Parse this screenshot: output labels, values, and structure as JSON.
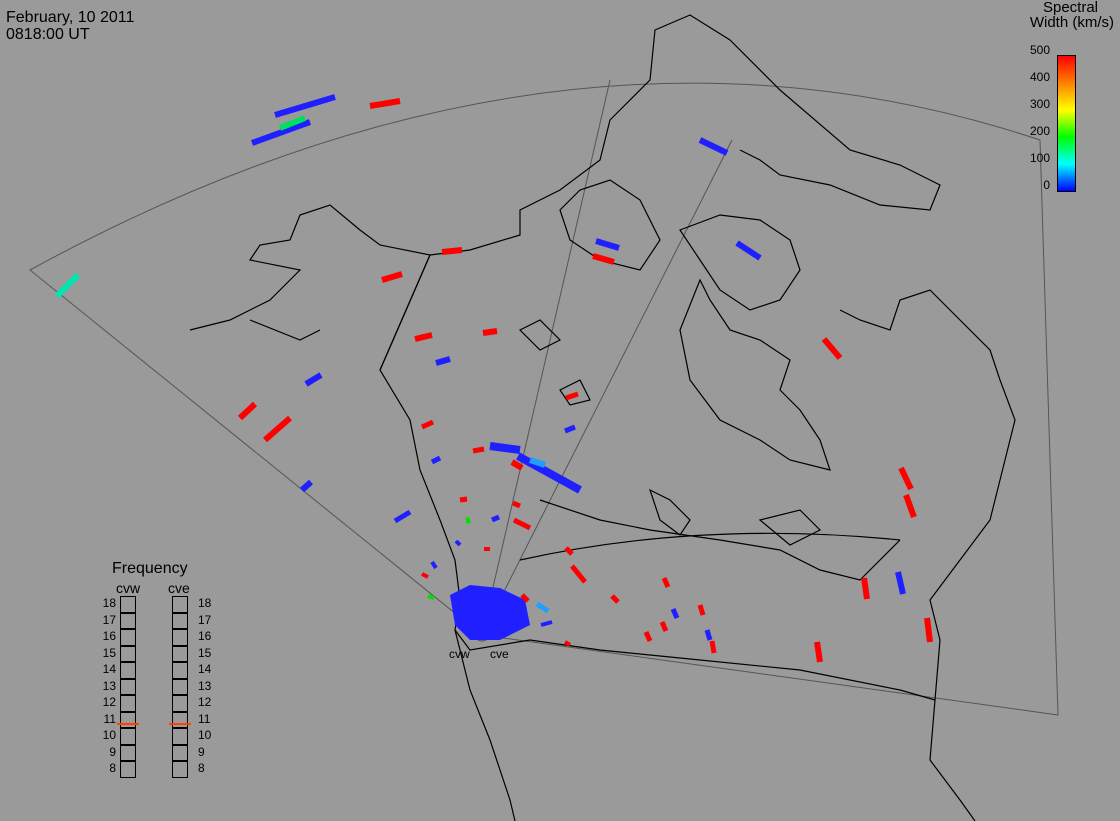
{
  "header": {
    "date": "February, 10 2011",
    "time": "0818:00 UT"
  },
  "colorbar": {
    "title_line1": "Spectral",
    "title_line2": "Width (km/s)",
    "ticks": [
      "500",
      "400",
      "300",
      "200",
      "100",
      "0"
    ],
    "colors": [
      "#ff0000",
      "#ff8000",
      "#ffff00",
      "#00ff00",
      "#00ffff",
      "#0000ff"
    ]
  },
  "radars": {
    "west_label": "cvw",
    "east_label": "cve"
  },
  "frequency": {
    "title": "Frequency",
    "col_labels": [
      "cvw",
      "cve"
    ],
    "scale": [
      "18",
      "17",
      "16",
      "15",
      "14",
      "13",
      "12",
      "11",
      "10",
      "9",
      "8"
    ],
    "cvw_mhz": 10.8,
    "cve_mhz": 10.8,
    "marker_color": "#ff4000"
  },
  "map_colors": {
    "background": "#9a9a9a",
    "coastline": "#000000",
    "fov_outline": "#555555"
  }
}
